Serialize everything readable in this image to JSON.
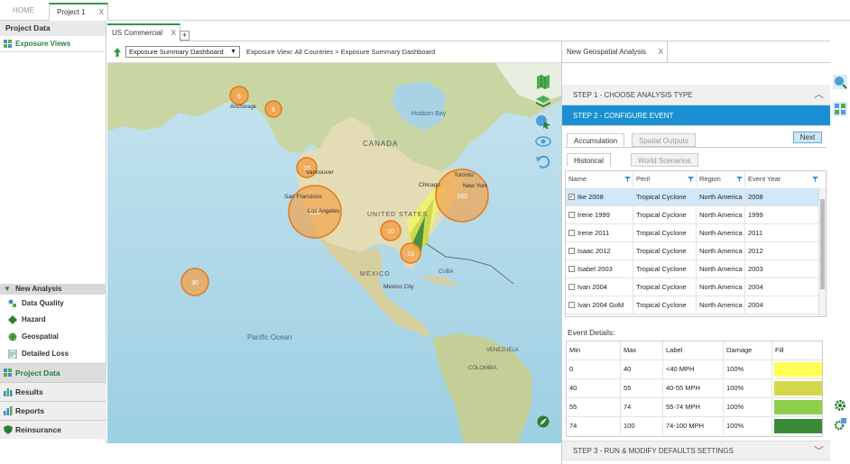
{
  "top_tabs": [
    {
      "label": "HOME"
    },
    {
      "label": "Project 1",
      "close": "X"
    }
  ],
  "sidebar": {
    "header": "Project Data",
    "sub_item": "Exposure Views",
    "new_analysis": {
      "header": "New Analysis",
      "items": [
        "Data Quality",
        "Hazard",
        "Geospatial",
        "Detailed Loss"
      ]
    },
    "bottom_items": [
      "Project Data",
      "Results",
      "Reports",
      "Reinsurance"
    ]
  },
  "main": {
    "tab": {
      "label": "US Commercial",
      "close": "X"
    },
    "add_tab": "+",
    "toolbar": {
      "select_value": "Exposure Summary Dashboard",
      "select_caret": "▼",
      "breadcrumb": "Exposure View: All Countries > Exposure Summary Dashboard"
    }
  },
  "map": {
    "labels": {
      "canada": "CANADA",
      "united_states": "UNITED STATES",
      "mexico": "MEXICO",
      "mexico_city": "Mexico City",
      "hudson_bay": "Hudson Bay",
      "vancouver": "Vancouver",
      "san_francisco": "San Francisco",
      "los_angeles": "Los Angeles",
      "chicago": "Chicago",
      "toronto": "Toronto",
      "new_york": "New York",
      "pacific_ocean": "Pacific Ocean",
      "anchorage": "Anchorage",
      "cuba": "CUBA",
      "venezuela": "VENEZUELA",
      "colombia": "COLOMBIA"
    },
    "clusters": [
      {
        "label": "6"
      },
      {
        "label": "6"
      },
      {
        "label": "15"
      },
      {
        "label": "219"
      },
      {
        "label": "165"
      },
      {
        "label": "10"
      },
      {
        "label": "13"
      },
      {
        "label": "30"
      }
    ]
  },
  "panel": {
    "tab_label": "New Geospatial Analysis",
    "tab_close": "X",
    "step1": "STEP 1 - CHOOSE ANALYSIS TYPE",
    "step2": "STEP 2 - CONFIGURE EVENT",
    "step3": "STEP 3 - RUN & MODIFY DEFAULTS SETTINGS",
    "subtabs": {
      "accumulation": "Accumulation",
      "spatial_outputs": "Spatial Outputs"
    },
    "event_tabs": {
      "historical": "Historical",
      "world_scenarios": "World Scenarios"
    },
    "next_button": "Next",
    "grid_columns": [
      "Name",
      "Peril",
      "Region",
      "Event Year"
    ],
    "events": [
      {
        "name": "Ike 2008",
        "peril": "Tropical Cyclone",
        "region": "North America",
        "year": "2008",
        "checked": true
      },
      {
        "name": "Irene 1999",
        "peril": "Tropical Cyclone",
        "region": "North America",
        "year": "1999",
        "checked": false
      },
      {
        "name": "Irene 2011",
        "peril": "Tropical Cyclone",
        "region": "North America",
        "year": "2011",
        "checked": false
      },
      {
        "name": "Isaac 2012",
        "peril": "Tropical Cyclone",
        "region": "North America",
        "year": "2012",
        "checked": false
      },
      {
        "name": "Isabel 2003",
        "peril": "Tropical Cyclone",
        "region": "North America",
        "year": "2003",
        "checked": false
      },
      {
        "name": "Ivan 2004",
        "peril": "Tropical Cyclone",
        "region": "North America",
        "year": "2004",
        "checked": false
      },
      {
        "name": "Ivan 2004 GoM",
        "peril": "Tropical Cyclone",
        "region": "North America",
        "year": "2004",
        "checked": false
      }
    ],
    "event_details_label": "Event Details:",
    "detail_columns": [
      "Min",
      "Max",
      "Label",
      "Damage",
      "Fill"
    ],
    "details": [
      {
        "min": "0",
        "max": "40",
        "label": "<40 MPH",
        "damage": "100%",
        "fill": "#ffff55"
      },
      {
        "min": "40",
        "max": "55",
        "label": "40-55 MPH",
        "damage": "100%",
        "fill": "#d6d64a"
      },
      {
        "min": "55",
        "max": "74",
        "label": "55-74 MPH",
        "damage": "100%",
        "fill": "#8fcf4a"
      },
      {
        "min": "74",
        "max": "100",
        "label": "74-100 MPH",
        "damage": "100%",
        "fill": "#3a8a3a"
      }
    ]
  },
  "colors": {
    "accent_green": "#2a9d3c",
    "step_blue": "#1a90d2",
    "cluster_orange": "#f2a34a"
  }
}
